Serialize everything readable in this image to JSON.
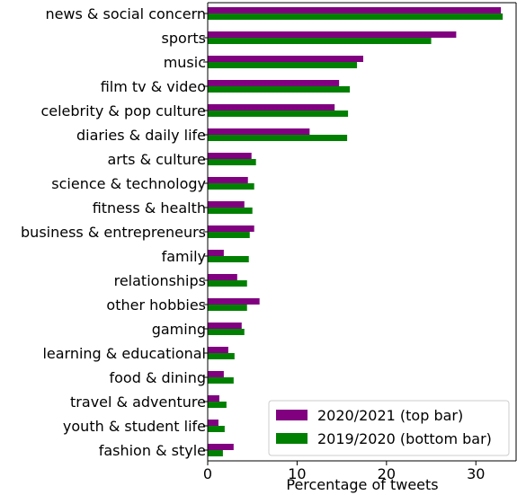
{
  "chart_data": {
    "type": "bar",
    "orientation": "horizontal",
    "categories": [
      "news & social concern",
      "sports",
      "music",
      "film tv & video",
      "celebrity & pop culture",
      "diaries & daily life",
      "arts & culture",
      "science & technology",
      "fitness & health",
      "business & entrepreneurs",
      "family",
      "relationships",
      "other hobbies",
      "gaming",
      "learning & educational",
      "food & dining",
      "travel & adventure",
      "youth & student life",
      "fashion & style"
    ],
    "series": [
      {
        "name": "2020/2021 (top bar)",
        "color": "#800080",
        "values": [
          32.8,
          27.8,
          17.4,
          14.7,
          14.2,
          11.4,
          4.9,
          4.5,
          4.1,
          5.2,
          1.8,
          3.3,
          5.8,
          3.8,
          2.3,
          1.8,
          1.3,
          1.2,
          2.9
        ]
      },
      {
        "name": "2019/2020 (bottom bar)",
        "color": "#008000",
        "values": [
          33.0,
          25.0,
          16.7,
          15.9,
          15.7,
          15.6,
          5.4,
          5.2,
          5.0,
          4.7,
          4.6,
          4.4,
          4.4,
          4.1,
          3.0,
          2.9,
          2.1,
          1.9,
          1.7
        ]
      }
    ],
    "xticks": [
      0,
      10,
      20,
      30
    ],
    "xlim": [
      0,
      34.5
    ],
    "xlabel": "Percentage of tweets",
    "legend_position": "lower-right",
    "grid": false
  }
}
